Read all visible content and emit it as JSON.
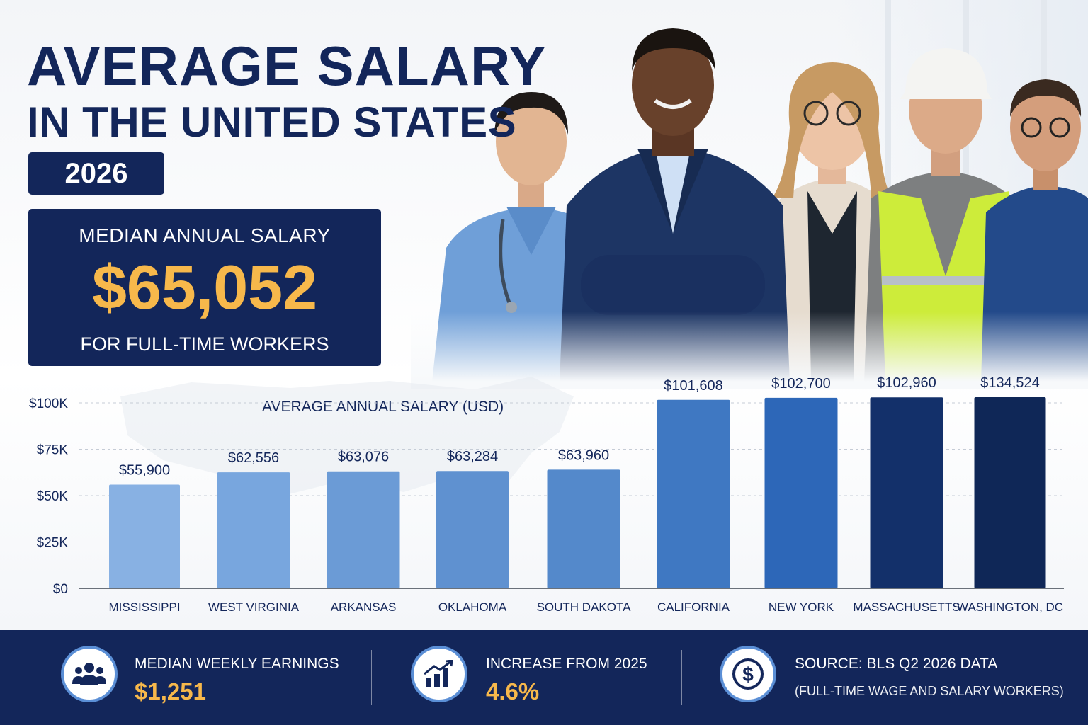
{
  "header": {
    "title_line1": "AVERAGE SALARY",
    "title_line2": "IN THE UNITED STATES",
    "year": "2026"
  },
  "median_card": {
    "label": "MEDIAN ANNUAL SALARY",
    "value": "$65,052",
    "sublabel": "FOR FULL-TIME WORKERS"
  },
  "chart_data": {
    "type": "bar",
    "title": "AVERAGE ANNUAL SALARY (USD)",
    "categories": [
      "MISSISSIPPI",
      "WEST VIRGINIA",
      "ARKANSAS",
      "OKLAHOMA",
      "SOUTH DAKOTA",
      "CALIFORNIA",
      "NEW YORK",
      "MASSACHUSETTS",
      "WASHINGTON, DC"
    ],
    "values": [
      55900,
      62556,
      63076,
      63284,
      63960,
      101608,
      102700,
      102960,
      134524
    ],
    "value_labels": [
      "$55,900",
      "$62,556",
      "$63,076",
      "$63,284",
      "$63,960",
      "$101,608",
      "$102,700",
      "$102,960",
      "$134,524"
    ],
    "bar_colors": [
      "#88b1e3",
      "#78a6de",
      "#6b9bd6",
      "#5f91d0",
      "#5489cb",
      "#3f78c2",
      "#2d67b8",
      "#13306a",
      "#0f2757"
    ],
    "yticks": [
      {
        "value": 0,
        "label": "$0"
      },
      {
        "value": 25000,
        "label": "$25K"
      },
      {
        "value": 50000,
        "label": "$50K"
      },
      {
        "value": 75000,
        "label": "$75K"
      },
      {
        "value": 100000,
        "label": "$100K"
      }
    ],
    "grid": true,
    "legend": "none"
  },
  "footer": {
    "weekly": {
      "icon": "people-icon",
      "label": "MEDIAN WEEKLY EARNINGS",
      "value": "$1,251"
    },
    "increase": {
      "icon": "growth-chart-icon",
      "label": "INCREASE FROM 2025",
      "value": "4.6%"
    },
    "source": {
      "icon": "dollar-icon",
      "label": "SOURCE: BLS Q2 2026 DATA",
      "note": "(FULL-TIME WAGE AND SALARY WORKERS)"
    }
  },
  "colors": {
    "navy": "#13265a",
    "accent_gold": "#f7b84b",
    "icon_ring": "#5b8fd6"
  }
}
